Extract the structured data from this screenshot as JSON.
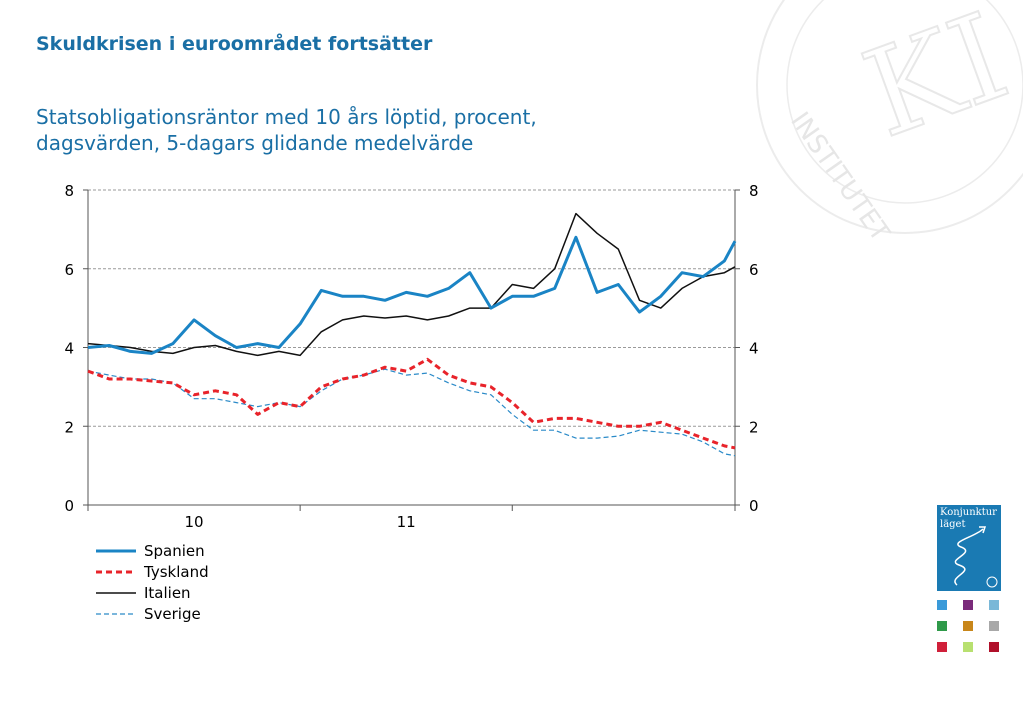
{
  "title": "Skuldkrisen i euroområdet fortsätter",
  "subtitle_line1": "Statsobligationsräntor med 10 års löptid, procent,",
  "subtitle_line2": "dagsvärden, 5-dagars glidande medelvärde",
  "badge": {
    "line1": "Konjunktur",
    "line2": "läget",
    "emblem": "KI"
  },
  "watermark": {
    "letters": "KI",
    "text": "INSTITUTET"
  },
  "tile_colors": [
    "#3a9ad9",
    "#7a2a7a",
    "#7ab8d8",
    "#2f9a4a",
    "#c8861a",
    "#a8a8a8",
    "#d0203a",
    "#b8e070",
    "#b0102a"
  ],
  "chart_data": {
    "type": "line",
    "x_unit": "year",
    "x": [
      2009.5,
      2009.6,
      2009.7,
      2009.8,
      2009.9,
      2010.0,
      2010.1,
      2010.2,
      2010.3,
      2010.4,
      2010.5,
      2010.6,
      2010.7,
      2010.8,
      2010.9,
      2011.0,
      2011.1,
      2011.2,
      2011.3,
      2011.4,
      2011.5,
      2011.6,
      2011.7,
      2011.8,
      2011.9,
      2012.0,
      2012.1,
      2012.2,
      2012.3,
      2012.4,
      2012.5,
      2012.55
    ],
    "categories": [
      "10",
      "11"
    ],
    "category_positions": [
      2010,
      2011
    ],
    "ylim": [
      0,
      8
    ],
    "yticks": [
      "0",
      "2",
      "4",
      "6",
      "8"
    ],
    "grid": true,
    "legend_position": "bottom-left",
    "series": [
      {
        "name": "Spanien",
        "color": "#1a84c5",
        "dash": "solid",
        "width": 3,
        "values": [
          4.0,
          4.05,
          3.9,
          3.85,
          4.1,
          4.7,
          4.3,
          4.0,
          4.1,
          4.0,
          4.6,
          5.45,
          5.3,
          5.3,
          5.2,
          5.4,
          5.3,
          5.5,
          5.9,
          5.0,
          5.3,
          5.3,
          5.5,
          6.8,
          5.4,
          5.6,
          4.9,
          5.3,
          5.9,
          5.8,
          6.2,
          6.7
        ]
      },
      {
        "name": "Tyskland",
        "color": "#e8232a",
        "dash": "dashed",
        "width": 3,
        "values": [
          3.4,
          3.2,
          3.2,
          3.15,
          3.1,
          2.8,
          2.9,
          2.8,
          2.3,
          2.6,
          2.5,
          3.0,
          3.2,
          3.3,
          3.5,
          3.4,
          3.7,
          3.3,
          3.1,
          3.0,
          2.6,
          2.1,
          2.2,
          2.2,
          2.1,
          2.0,
          2.0,
          2.1,
          1.9,
          1.7,
          1.5,
          1.45
        ]
      },
      {
        "name": "Italien",
        "color": "#111111",
        "dash": "solid",
        "width": 1.5,
        "values": [
          4.1,
          4.05,
          4.0,
          3.9,
          3.85,
          4.0,
          4.05,
          3.9,
          3.8,
          3.9,
          3.8,
          4.4,
          4.7,
          4.8,
          4.75,
          4.8,
          4.7,
          4.8,
          5.0,
          5.0,
          5.6,
          5.5,
          6.0,
          7.4,
          6.9,
          6.5,
          5.2,
          5.0,
          5.5,
          5.8,
          5.9,
          6.05
        ]
      },
      {
        "name": "Sverige",
        "color": "#2a8ac8",
        "dash": "dashed",
        "width": 1.2,
        "values": [
          3.4,
          3.3,
          3.2,
          3.2,
          3.1,
          2.7,
          2.7,
          2.6,
          2.5,
          2.6,
          2.5,
          2.9,
          3.2,
          3.3,
          3.45,
          3.3,
          3.35,
          3.1,
          2.9,
          2.8,
          2.3,
          1.9,
          1.9,
          1.7,
          1.7,
          1.75,
          1.9,
          1.85,
          1.8,
          1.6,
          1.3,
          1.25
        ]
      }
    ]
  }
}
